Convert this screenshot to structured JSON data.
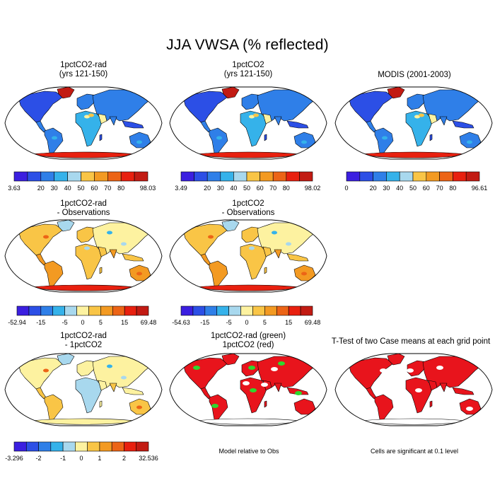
{
  "title": "JJA VWSA (% reflected)",
  "panels": [
    {
      "id": "p1",
      "title": "1pctCO2-rad\n(yrs 121-150)",
      "scheme": "abs"
    },
    {
      "id": "p2",
      "title": "1pctCO2\n(yrs 121-150)",
      "scheme": "abs"
    },
    {
      "id": "p3",
      "title": "MODIS (2001-2003)",
      "scheme": "abs"
    },
    {
      "id": "p4",
      "title": "1pctCO2-rad\n- Observations",
      "scheme": "diff"
    },
    {
      "id": "p5",
      "title": "1pctCO2\n- Observations",
      "scheme": "diff"
    },
    {
      "id": "p6",
      "title": "1pctCO2-rad\n- 1pctCO2",
      "scheme": "diff2"
    },
    {
      "id": "p7",
      "title": "1pctCO2-rad (green)\n1pctCO2 (red)",
      "scheme": "sig2"
    },
    {
      "id": "p8",
      "title": "T-Test of two Case means at each grid point",
      "scheme": "sig"
    }
  ],
  "colorbars": [
    {
      "id": "cb1",
      "labels": [
        "3.63",
        "20",
        "30",
        "40",
        "50",
        "60",
        "70",
        "80",
        "98.03"
      ]
    },
    {
      "id": "cb2",
      "labels": [
        "3.49",
        "20",
        "30",
        "40",
        "50",
        "60",
        "70",
        "80",
        "98.02"
      ]
    },
    {
      "id": "cb3",
      "labels": [
        "0",
        "20",
        "30",
        "40",
        "50",
        "60",
        "70",
        "80",
        "96.61"
      ]
    },
    {
      "id": "cb4",
      "labels": [
        "-52.94",
        "-15",
        "-5",
        "0",
        "5",
        "15",
        "69.48"
      ]
    },
    {
      "id": "cb5",
      "labels": [
        "-54.63",
        "-15",
        "-5",
        "0",
        "5",
        "15",
        "69.48"
      ]
    },
    {
      "id": "cb6",
      "labels": [
        "-3.296",
        "-2",
        "-1",
        "0",
        "1",
        "2",
        "32.536"
      ]
    }
  ],
  "notes": {
    "model_relative": "Model relative to Obs",
    "significance": "Cells are significant at 0.1 level"
  },
  "colors": {
    "palette": [
      "#3b1fe0",
      "#2c4fe6",
      "#2f7fe8",
      "#35b2ea",
      "#a8d8ee",
      "#fdf2a0",
      "#f9c546",
      "#f39a22",
      "#ec6416",
      "#e8200f",
      "#c21b13"
    ],
    "significant_red": "#e8141c",
    "significant_green": "#2ed82e"
  }
}
